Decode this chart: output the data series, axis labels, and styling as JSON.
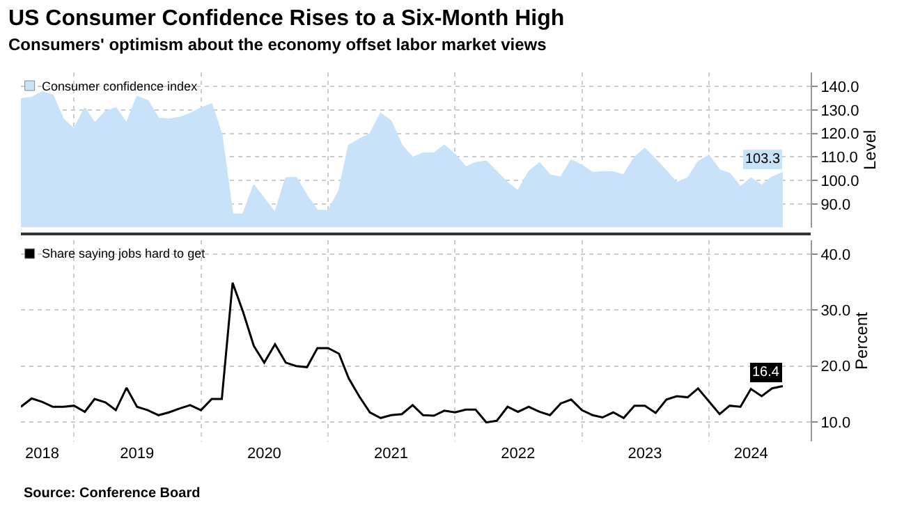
{
  "chart_data": [
    {
      "type": "area",
      "title": "US Consumer Confidence Rises to a Six-Month High",
      "subtitle": "Consumers' optimism about the economy offset labor market views",
      "x": [
        "2018-08",
        "2018-09",
        "2018-10",
        "2018-11",
        "2018-12",
        "2019-01",
        "2019-02",
        "2019-03",
        "2019-04",
        "2019-05",
        "2019-06",
        "2019-07",
        "2019-08",
        "2019-09",
        "2019-10",
        "2019-11",
        "2019-12",
        "2020-01",
        "2020-02",
        "2020-03",
        "2020-04",
        "2020-05",
        "2020-06",
        "2020-07",
        "2020-08",
        "2020-09",
        "2020-10",
        "2020-11",
        "2020-12",
        "2021-01",
        "2021-02",
        "2021-03",
        "2021-04",
        "2021-05",
        "2021-06",
        "2021-07",
        "2021-08",
        "2021-09",
        "2021-10",
        "2021-11",
        "2021-12",
        "2022-01",
        "2022-02",
        "2022-03",
        "2022-04",
        "2022-05",
        "2022-06",
        "2022-07",
        "2022-08",
        "2022-09",
        "2022-10",
        "2022-11",
        "2022-12",
        "2023-01",
        "2023-02",
        "2023-03",
        "2023-04",
        "2023-05",
        "2023-06",
        "2023-07",
        "2023-08",
        "2023-09",
        "2023-10",
        "2023-11",
        "2023-12",
        "2024-01",
        "2024-02",
        "2024-03",
        "2024-04",
        "2024-05",
        "2024-06",
        "2024-07",
        "2024-08"
      ],
      "series": [
        {
          "name": "Consumer confidence index",
          "color": "#c8e2fa",
          "values": [
            134.7,
            135.3,
            137.7,
            136.3,
            126.1,
            121.9,
            130.9,
            124.4,
            129.3,
            130.9,
            124.4,
            135.7,
            134.0,
            126.4,
            126.1,
            126.8,
            128.4,
            130.9,
            132.5,
            119.4,
            85.6,
            85.6,
            98.0,
            92.2,
            86.3,
            101.0,
            101.3,
            93.5,
            87.3,
            87.1,
            95.5,
            114.9,
            117.6,
            119.8,
            128.6,
            125.2,
            114.9,
            109.8,
            111.6,
            111.6,
            114.9,
            111.0,
            105.7,
            107.5,
            108.2,
            103.7,
            99.0,
            95.5,
            103.7,
            107.5,
            102.3,
            101.4,
            108.7,
            106.4,
            103.3,
            103.7,
            103.5,
            102.3,
            109.8,
            113.6,
            108.9,
            104.0,
            99.0,
            101.0,
            107.8,
            110.7,
            104.4,
            103.0,
            97.2,
            101.0,
            97.9,
            101.4,
            103.3
          ],
          "value_labels": [
            null,
            null,
            null,
            null,
            null,
            null,
            null,
            null,
            null,
            null,
            null,
            null,
            null,
            null,
            null,
            null,
            null,
            null,
            null,
            null,
            null,
            null,
            null,
            null,
            null,
            null,
            null,
            null,
            null,
            null,
            null,
            null,
            null,
            null,
            null,
            null,
            null,
            null,
            null,
            null,
            null,
            null,
            null,
            null,
            null,
            null,
            null,
            null,
            null,
            null,
            null,
            null,
            null,
            null,
            null,
            null,
            null,
            null,
            null,
            null,
            null,
            null,
            null,
            null,
            null,
            null,
            null,
            null,
            null,
            null,
            null,
            null,
            "103.3"
          ]
        }
      ],
      "xlim": [
        "2018-08",
        "2024-10-20"
      ],
      "xticks": [
        {
          "value": "2019-01",
          "label": null
        },
        {
          "value": "2020-01",
          "label": null
        },
        {
          "value": "2021-01",
          "label": null
        },
        {
          "value": "2022-01",
          "label": null
        },
        {
          "value": "2023-01",
          "label": null
        },
        {
          "value": "2024-01",
          "label": null
        }
      ],
      "ylim": [
        80,
        146
      ],
      "yticks": [
        {
          "value": 90,
          "label": "90.0"
        },
        {
          "value": 100,
          "label": "100.0"
        },
        {
          "value": 110,
          "label": "110.0"
        },
        {
          "value": 120,
          "label": "120.0"
        },
        {
          "value": 130,
          "label": "130.0"
        },
        {
          "value": 140,
          "label": "140.0"
        }
      ],
      "ylabel": "Level",
      "grid": true,
      "legend": "top left",
      "tick_labels": "y"
    },
    {
      "type": "line",
      "x": [
        "2018-08",
        "2018-09",
        "2018-10",
        "2018-11",
        "2018-12",
        "2019-01",
        "2019-02",
        "2019-03",
        "2019-04",
        "2019-05",
        "2019-06",
        "2019-07",
        "2019-08",
        "2019-09",
        "2019-10",
        "2019-11",
        "2019-12",
        "2020-01",
        "2020-02",
        "2020-03",
        "2020-04",
        "2020-05",
        "2020-06",
        "2020-07",
        "2020-08",
        "2020-09",
        "2020-10",
        "2020-11",
        "2020-12",
        "2021-01",
        "2021-02",
        "2021-03",
        "2021-04",
        "2021-05",
        "2021-06",
        "2021-07",
        "2021-08",
        "2021-09",
        "2021-10",
        "2021-11",
        "2021-12",
        "2022-01",
        "2022-02",
        "2022-03",
        "2022-04",
        "2022-05",
        "2022-06",
        "2022-07",
        "2022-08",
        "2022-09",
        "2022-10",
        "2022-11",
        "2022-12",
        "2023-01",
        "2023-02",
        "2023-03",
        "2023-04",
        "2023-05",
        "2023-06",
        "2023-07",
        "2023-08",
        "2023-09",
        "2023-10",
        "2023-11",
        "2023-12",
        "2024-01",
        "2024-02",
        "2024-03",
        "2024-04",
        "2024-05",
        "2024-06",
        "2024-07",
        "2024-08"
      ],
      "series": [
        {
          "name": "Share saying jobs hard to get",
          "color": "#000000",
          "values": [
            12.7,
            14.2,
            13.6,
            12.7,
            12.7,
            12.9,
            11.8,
            14.1,
            13.5,
            12.1,
            16.1,
            12.7,
            12.1,
            11.2,
            11.7,
            12.4,
            13.0,
            12.1,
            14.1,
            14.1,
            34.9,
            29.7,
            23.6,
            20.6,
            23.9,
            20.6,
            20.0,
            19.8,
            23.2,
            23.2,
            22.2,
            17.8,
            14.5,
            11.7,
            10.7,
            11.2,
            11.4,
            13.0,
            11.2,
            11.1,
            12.0,
            11.7,
            12.2,
            12.2,
            9.9,
            10.2,
            12.7,
            11.8,
            12.7,
            11.8,
            11.2,
            13.3,
            14.0,
            12.1,
            11.2,
            10.8,
            11.7,
            10.7,
            12.9,
            12.9,
            11.6,
            14.0,
            14.6,
            14.4,
            16.0,
            13.7,
            11.4,
            12.9,
            12.7,
            15.9,
            14.6,
            16.0,
            16.4
          ],
          "value_labels": [
            null,
            null,
            null,
            null,
            null,
            null,
            null,
            null,
            null,
            null,
            null,
            null,
            null,
            null,
            null,
            null,
            null,
            null,
            null,
            null,
            null,
            null,
            null,
            null,
            null,
            null,
            null,
            null,
            null,
            null,
            null,
            null,
            null,
            null,
            null,
            null,
            null,
            null,
            null,
            null,
            null,
            null,
            null,
            null,
            null,
            null,
            null,
            null,
            null,
            null,
            null,
            null,
            null,
            null,
            null,
            null,
            null,
            null,
            null,
            null,
            null,
            null,
            null,
            null,
            null,
            null,
            null,
            null,
            null,
            null,
            null,
            null,
            "16.4"
          ]
        }
      ],
      "xlim": [
        "2018-08",
        "2024-10-20"
      ],
      "xticks": [
        {
          "value": "2018-10",
          "label": "2018"
        },
        {
          "value": "2019-01",
          "label": null
        },
        {
          "value": "2019-07",
          "label": "2019"
        },
        {
          "value": "2020-01",
          "label": null
        },
        {
          "value": "2020-07",
          "label": "2020"
        },
        {
          "value": "2021-01",
          "label": null
        },
        {
          "value": "2021-07",
          "label": "2021"
        },
        {
          "value": "2022-01",
          "label": null
        },
        {
          "value": "2022-07",
          "label": "2022"
        },
        {
          "value": "2023-01",
          "label": null
        },
        {
          "value": "2023-07",
          "label": "2023"
        },
        {
          "value": "2024-01",
          "label": null
        },
        {
          "value": "2024-05",
          "label": "2024"
        }
      ],
      "ylim": [
        6.5,
        42.5
      ],
      "yticks": [
        {
          "value": 10,
          "label": "10.0"
        },
        {
          "value": 20,
          "label": "20.0"
        },
        {
          "value": 30,
          "label": "30.0"
        },
        {
          "value": 40,
          "label": "40.0"
        }
      ],
      "ylabel": "Percent",
      "grid": true,
      "legend": "top left",
      "annotations": [
        "Source: Conference Board"
      ]
    }
  ]
}
